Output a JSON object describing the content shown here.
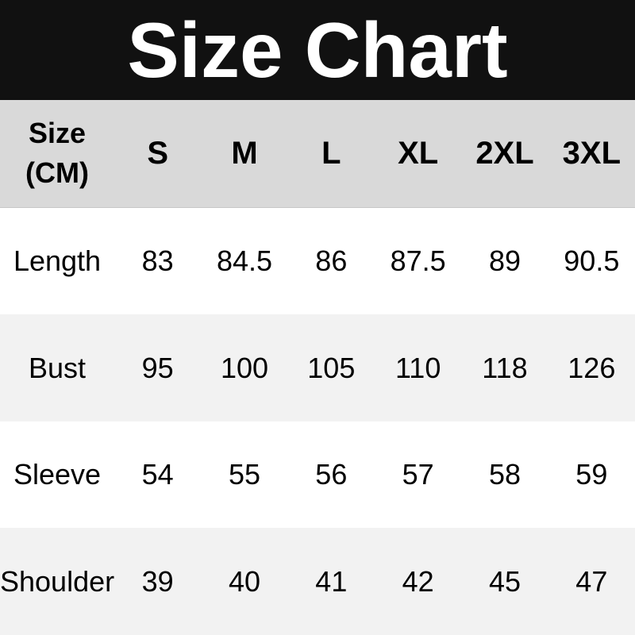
{
  "title": "Size Chart",
  "colors": {
    "title_band_bg": "#111111",
    "title_text": "#ffffff",
    "header_row_bg": "#d9d9d9",
    "row_white_bg": "#ffffff",
    "row_shade_bg": "#f2f2f2",
    "table_text": "#000000"
  },
  "chart_data": {
    "type": "table",
    "title": "Size Chart",
    "unit": "CM",
    "corner_label": "Size\n(CM)",
    "columns": [
      "S",
      "M",
      "L",
      "XL",
      "2XL",
      "3XL"
    ],
    "rows": [
      {
        "label": "Length",
        "values": [
          "83",
          "84.5",
          "86",
          "87.5",
          "89",
          "90.5"
        ]
      },
      {
        "label": "Bust",
        "values": [
          "95",
          "100",
          "105",
          "110",
          "118",
          "126"
        ]
      },
      {
        "label": "Sleeve",
        "values": [
          "54",
          "55",
          "56",
          "57",
          "58",
          "59"
        ]
      },
      {
        "label": "Shoulder",
        "values": [
          "39",
          "40",
          "41",
          "42",
          "45",
          "47"
        ]
      }
    ]
  }
}
